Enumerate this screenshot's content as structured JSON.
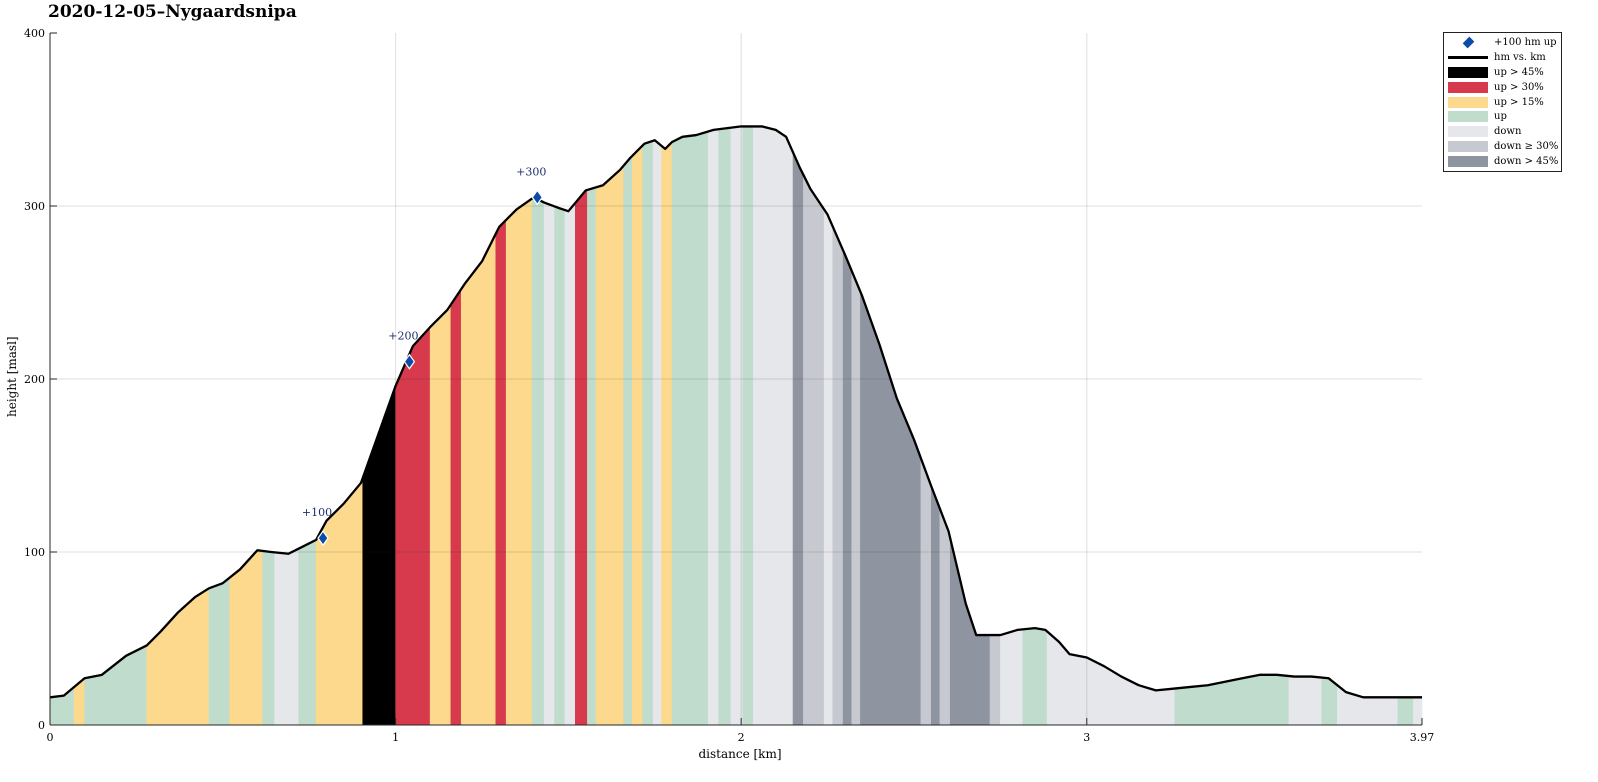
{
  "chart_data": {
    "type": "area",
    "title": "2020-12-05–Nygaardsnipa",
    "xlabel": "distance [km]",
    "ylabel": "height [masl]",
    "xlim": [
      0,
      3.97
    ],
    "ylim": [
      0,
      400
    ],
    "xticks": [
      0,
      1,
      2,
      3,
      3.97
    ],
    "xtick_labels": [
      "0",
      "1",
      "2",
      "3",
      "3.97"
    ],
    "yticks": [
      0,
      100,
      200,
      300,
      400
    ],
    "ytick_labels": [
      "0",
      "100",
      "200",
      "300",
      "400"
    ],
    "grid": true,
    "legend_position": "outside-top-right",
    "colors": {
      "up_gt_45": "#000000",
      "up_gt_30": "#d63a4c",
      "up_gt_15": "#fcd98c",
      "up": "#bfdccd",
      "down": "#e6e7ea",
      "down_ge_30": "#c6c9cf",
      "down_gt_45": "#8f95a0",
      "marker": "#0d4ba8",
      "line": "#000000"
    },
    "legend": [
      {
        "label": "+100 hm up",
        "kind": "marker",
        "color": "#0d4ba8"
      },
      {
        "label": "hm vs. km",
        "kind": "line",
        "color": "#000000"
      },
      {
        "label": "up > 45%",
        "kind": "patch",
        "color": "#000000"
      },
      {
        "label": "up > 30%",
        "kind": "patch",
        "color": "#d63a4c"
      },
      {
        "label": "up > 15%",
        "kind": "patch",
        "color": "#fcd98c"
      },
      {
        "label": "up",
        "kind": "patch",
        "color": "#bfdccd"
      },
      {
        "label": "down",
        "kind": "patch",
        "color": "#e6e7ea"
      },
      {
        "label": "down ≥ 30%",
        "kind": "patch",
        "color": "#c6c9cf"
      },
      {
        "label": "down > 45%",
        "kind": "patch",
        "color": "#8f95a0"
      }
    ],
    "profile": {
      "x": [
        0,
        0.04,
        0.1,
        0.15,
        0.22,
        0.28,
        0.32,
        0.37,
        0.42,
        0.46,
        0.5,
        0.55,
        0.6,
        0.64,
        0.69,
        0.72,
        0.77,
        0.8,
        0.85,
        0.9,
        0.95,
        1.0,
        1.05,
        1.1,
        1.15,
        1.2,
        1.25,
        1.3,
        1.35,
        1.4,
        1.43,
        1.47,
        1.5,
        1.55,
        1.6,
        1.65,
        1.68,
        1.72,
        1.75,
        1.78,
        1.8,
        1.83,
        1.87,
        1.92,
        1.96,
        2.0,
        2.03,
        2.06,
        2.1,
        2.13,
        2.17,
        2.2,
        2.25,
        2.3,
        2.35,
        2.4,
        2.45,
        2.5,
        2.55,
        2.6,
        2.65,
        2.68,
        2.72,
        2.75,
        2.8,
        2.85,
        2.88,
        2.92,
        2.95,
        3.0,
        3.05,
        3.1,
        3.15,
        3.2,
        3.25,
        3.3,
        3.35,
        3.4,
        3.45,
        3.5,
        3.55,
        3.6,
        3.65,
        3.7,
        3.75,
        3.8,
        3.85,
        3.9,
        3.97
      ],
      "y": [
        16,
        17,
        27,
        29,
        40,
        46,
        54,
        65,
        74,
        79,
        82,
        90,
        101,
        100,
        99,
        102,
        107,
        118,
        128,
        140,
        168,
        196,
        219,
        230,
        240,
        255,
        268,
        288,
        298,
        305,
        302,
        299,
        297,
        309,
        312,
        321,
        328,
        336,
        338,
        333,
        337,
        340,
        341,
        344,
        345,
        346,
        346,
        346,
        344,
        340,
        322,
        310,
        295,
        272,
        248,
        220,
        189,
        165,
        138,
        112,
        70,
        52,
        52,
        52,
        55,
        56,
        55,
        48,
        41,
        39,
        34,
        28,
        23,
        20,
        21,
        22,
        23,
        25,
        27,
        29,
        29,
        28,
        28,
        27,
        19,
        16,
        16,
        16,
        16
      ]
    },
    "segments": [
      {
        "from": 0.0,
        "to": 0.07,
        "grade": "up"
      },
      {
        "from": 0.07,
        "to": 0.1,
        "grade": "up_gt_15"
      },
      {
        "from": 0.1,
        "to": 0.28,
        "grade": "up"
      },
      {
        "from": 0.28,
        "to": 0.46,
        "grade": "up_gt_15"
      },
      {
        "from": 0.46,
        "to": 0.52,
        "grade": "up"
      },
      {
        "from": 0.52,
        "to": 0.615,
        "grade": "up_gt_15"
      },
      {
        "from": 0.615,
        "to": 0.65,
        "grade": "up"
      },
      {
        "from": 0.65,
        "to": 0.72,
        "grade": "down"
      },
      {
        "from": 0.72,
        "to": 0.77,
        "grade": "up"
      },
      {
        "from": 0.77,
        "to": 0.905,
        "grade": "up_gt_15"
      },
      {
        "from": 0.905,
        "to": 1.0,
        "grade": "up_gt_45"
      },
      {
        "from": 1.0,
        "to": 1.1,
        "grade": "up_gt_30"
      },
      {
        "from": 1.1,
        "to": 1.16,
        "grade": "up_gt_15"
      },
      {
        "from": 1.16,
        "to": 1.19,
        "grade": "up_gt_30"
      },
      {
        "from": 1.19,
        "to": 1.29,
        "grade": "up_gt_15"
      },
      {
        "from": 1.29,
        "to": 1.32,
        "grade": "up_gt_30"
      },
      {
        "from": 1.32,
        "to": 1.395,
        "grade": "up_gt_15"
      },
      {
        "from": 1.395,
        "to": 1.43,
        "grade": "up"
      },
      {
        "from": 1.43,
        "to": 1.46,
        "grade": "down"
      },
      {
        "from": 1.46,
        "to": 1.49,
        "grade": "up"
      },
      {
        "from": 1.49,
        "to": 1.52,
        "grade": "down"
      },
      {
        "from": 1.52,
        "to": 1.555,
        "grade": "up_gt_30"
      },
      {
        "from": 1.555,
        "to": 1.58,
        "grade": "up"
      },
      {
        "from": 1.58,
        "to": 1.66,
        "grade": "up_gt_15"
      },
      {
        "from": 1.66,
        "to": 1.685,
        "grade": "up"
      },
      {
        "from": 1.685,
        "to": 1.715,
        "grade": "up_gt_15"
      },
      {
        "from": 1.715,
        "to": 1.745,
        "grade": "up"
      },
      {
        "from": 1.745,
        "to": 1.77,
        "grade": "down"
      },
      {
        "from": 1.77,
        "to": 1.8,
        "grade": "up_gt_15"
      },
      {
        "from": 1.8,
        "to": 1.905,
        "grade": "up"
      },
      {
        "from": 1.905,
        "to": 1.935,
        "grade": "down"
      },
      {
        "from": 1.935,
        "to": 1.97,
        "grade": "up"
      },
      {
        "from": 1.97,
        "to": 2.005,
        "grade": "down"
      },
      {
        "from": 2.005,
        "to": 2.035,
        "grade": "up"
      },
      {
        "from": 2.035,
        "to": 2.15,
        "grade": "down"
      },
      {
        "from": 2.15,
        "to": 2.18,
        "grade": "down_gt_45"
      },
      {
        "from": 2.18,
        "to": 2.24,
        "grade": "down_ge_30"
      },
      {
        "from": 2.24,
        "to": 2.265,
        "grade": "down"
      },
      {
        "from": 2.265,
        "to": 2.295,
        "grade": "down_ge_30"
      },
      {
        "from": 2.295,
        "to": 2.32,
        "grade": "down_gt_45"
      },
      {
        "from": 2.32,
        "to": 2.345,
        "grade": "down_ge_30"
      },
      {
        "from": 2.345,
        "to": 2.52,
        "grade": "down_gt_45"
      },
      {
        "from": 2.52,
        "to": 2.55,
        "grade": "down_ge_30"
      },
      {
        "from": 2.55,
        "to": 2.575,
        "grade": "down_gt_45"
      },
      {
        "from": 2.575,
        "to": 2.605,
        "grade": "down_ge_30"
      },
      {
        "from": 2.605,
        "to": 2.72,
        "grade": "down_gt_45"
      },
      {
        "from": 2.72,
        "to": 2.75,
        "grade": "down_ge_30"
      },
      {
        "from": 2.75,
        "to": 2.815,
        "grade": "down"
      },
      {
        "from": 2.815,
        "to": 2.885,
        "grade": "up"
      },
      {
        "from": 2.885,
        "to": 3.255,
        "grade": "down"
      },
      {
        "from": 3.255,
        "to": 3.585,
        "grade": "up"
      },
      {
        "from": 3.585,
        "to": 3.68,
        "grade": "down"
      },
      {
        "from": 3.68,
        "to": 3.725,
        "grade": "up"
      },
      {
        "from": 3.725,
        "to": 3.9,
        "grade": "down"
      },
      {
        "from": 3.9,
        "to": 3.945,
        "grade": "up"
      },
      {
        "from": 3.945,
        "to": 3.97,
        "grade": "down"
      }
    ],
    "markers": [
      {
        "x": 0.79,
        "y": 108,
        "label": "+100"
      },
      {
        "x": 1.04,
        "y": 210,
        "label": "+200"
      },
      {
        "x": 1.41,
        "y": 305,
        "label": "+300"
      }
    ]
  }
}
